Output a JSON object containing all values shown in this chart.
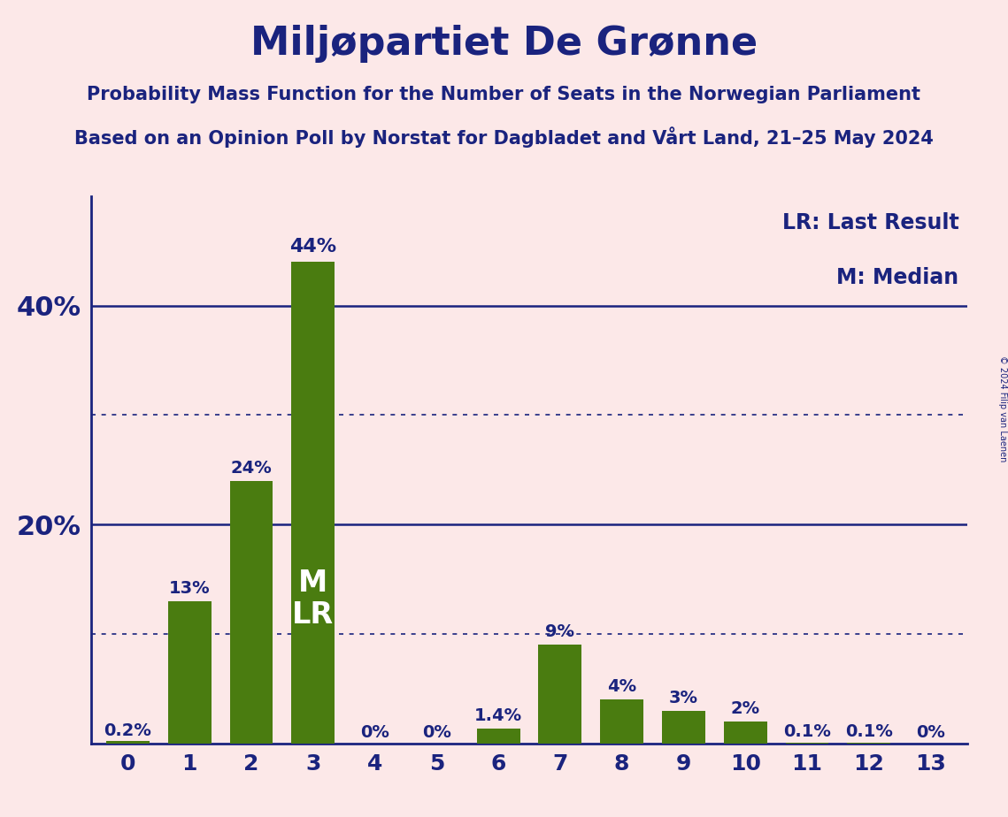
{
  "title": "Miljøpartiet De Grønne",
  "subtitle1": "Probability Mass Function for the Number of Seats in the Norwegian Parliament",
  "subtitle2": "Based on an Opinion Poll by Norstat for Dagbladet and Vårt Land, 21–25 May 2024",
  "copyright": "© 2024 Filip van Laenen",
  "categories": [
    0,
    1,
    2,
    3,
    4,
    5,
    6,
    7,
    8,
    9,
    10,
    11,
    12,
    13
  ],
  "values": [
    0.2,
    13,
    24,
    44,
    0,
    0,
    1.4,
    9,
    4,
    3,
    2,
    0.1,
    0.1,
    0
  ],
  "bar_color": "#4a7c10",
  "background_color": "#fce8e8",
  "title_color": "#1a237e",
  "axis_color": "#1a237e",
  "legend_lr": "LR: Last Result",
  "legend_m": "M: Median",
  "solid_lines": [
    20,
    40
  ],
  "dotted_lines": [
    10,
    30
  ],
  "ylim": [
    0,
    50
  ],
  "bar_labels": [
    "0.2%",
    "13%",
    "24%",
    "44%",
    "0%",
    "0%",
    "1.4%",
    "9%",
    "4%",
    "3%",
    "2%",
    "0.1%",
    "0.1%",
    "0%"
  ],
  "inner_label_seat": 3,
  "inner_label_text": "M\nLR",
  "title_fontsize": 32,
  "subtitle_fontsize": 15,
  "bar_label_fontsize": 14,
  "ytick_fontsize": 22,
  "xtick_fontsize": 18,
  "legend_fontsize": 17
}
